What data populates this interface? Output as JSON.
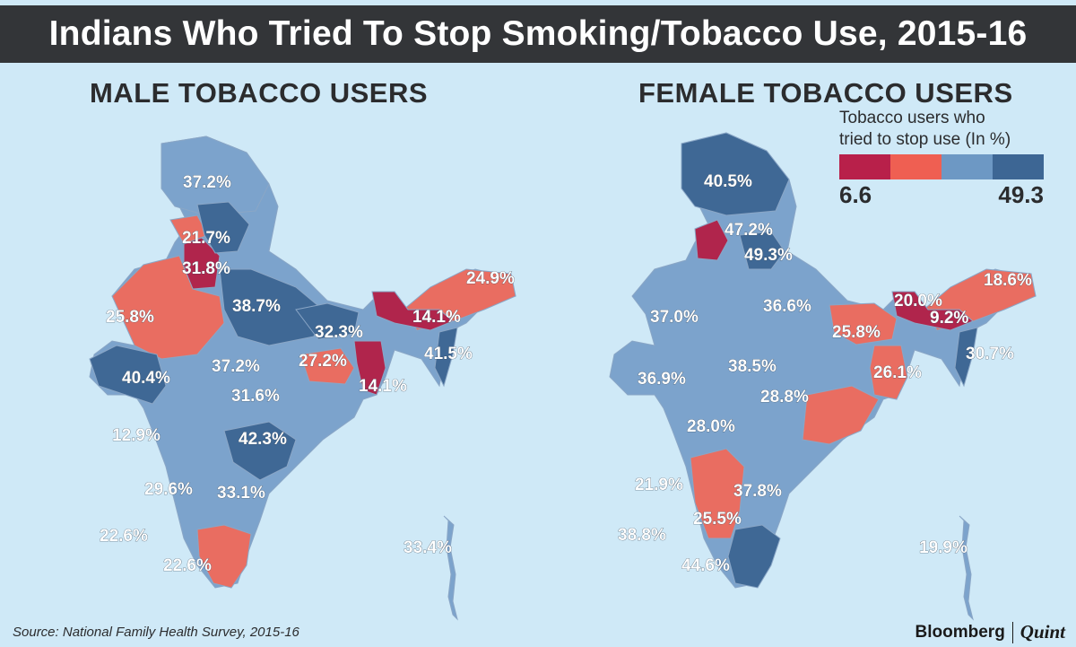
{
  "title": "Indians Who Tried To Stop Smoking/Tobacco Use, 2015-16",
  "male": {
    "heading": "MALE TOBACCO USERS",
    "labels": {
      "jk": "37.2%",
      "punjab": "21.7%",
      "haryana": "31.8%",
      "uttarakhand": "",
      "rajasthan": "25.8%",
      "up": "38.7%",
      "bihar": "32.3%",
      "ne": "24.9%",
      "assam": "14.1%",
      "northeast_south": "41.5%",
      "gujarat": "40.4%",
      "mp": "37.2%",
      "jharkhand": "27.2%",
      "wb": "14.1%",
      "chhattisgarh": "31.6%",
      "maharashtra": "12.9%",
      "telangana": "42.3%",
      "karnataka": "29.6%",
      "ap": "33.1%",
      "lakshadweep": "22.6%",
      "tn": "22.6%",
      "andaman": "33.4%"
    }
  },
  "female": {
    "heading": "FEMALE TOBACCO USERS",
    "labels": {
      "jk": "40.5%",
      "hp": "47.2%",
      "uttarakhand": "49.3%",
      "ne": "18.6%",
      "meghalaya": "20.0%",
      "assam": "9.2%",
      "rajasthan": "37.0%",
      "up": "36.6%",
      "bihar": "25.8%",
      "wb": "26.1%",
      "mizoram": "30.7%",
      "gujarat": "36.9%",
      "mp": "38.5%",
      "odisha": "28.8%",
      "maharashtra": "28.0%",
      "goa": "21.9%",
      "ap": "37.8%",
      "karnataka": "25.5%",
      "lakshadweep": "38.8%",
      "tn": "44.6%",
      "andaman": "19.9%"
    }
  },
  "legend": {
    "title_line1": "Tobacco users who",
    "title_line2": "tried to stop use (In %)",
    "min": "6.6",
    "max": "49.3",
    "colors": [
      "#b8204a",
      "#ef5f52",
      "#6d98c4",
      "#3d6694"
    ]
  },
  "source": "Source: National Family Health Survey, 2015-16",
  "brand": {
    "name": "Bloomberg",
    "partner": "Quint"
  },
  "colors": {
    "dark_red": "#b0254c",
    "coral": "#e96d61",
    "light_blue": "#7ca3cc",
    "dark_blue": "#3f6895",
    "background": "#cfe9f7",
    "title_bar": "#333538"
  }
}
